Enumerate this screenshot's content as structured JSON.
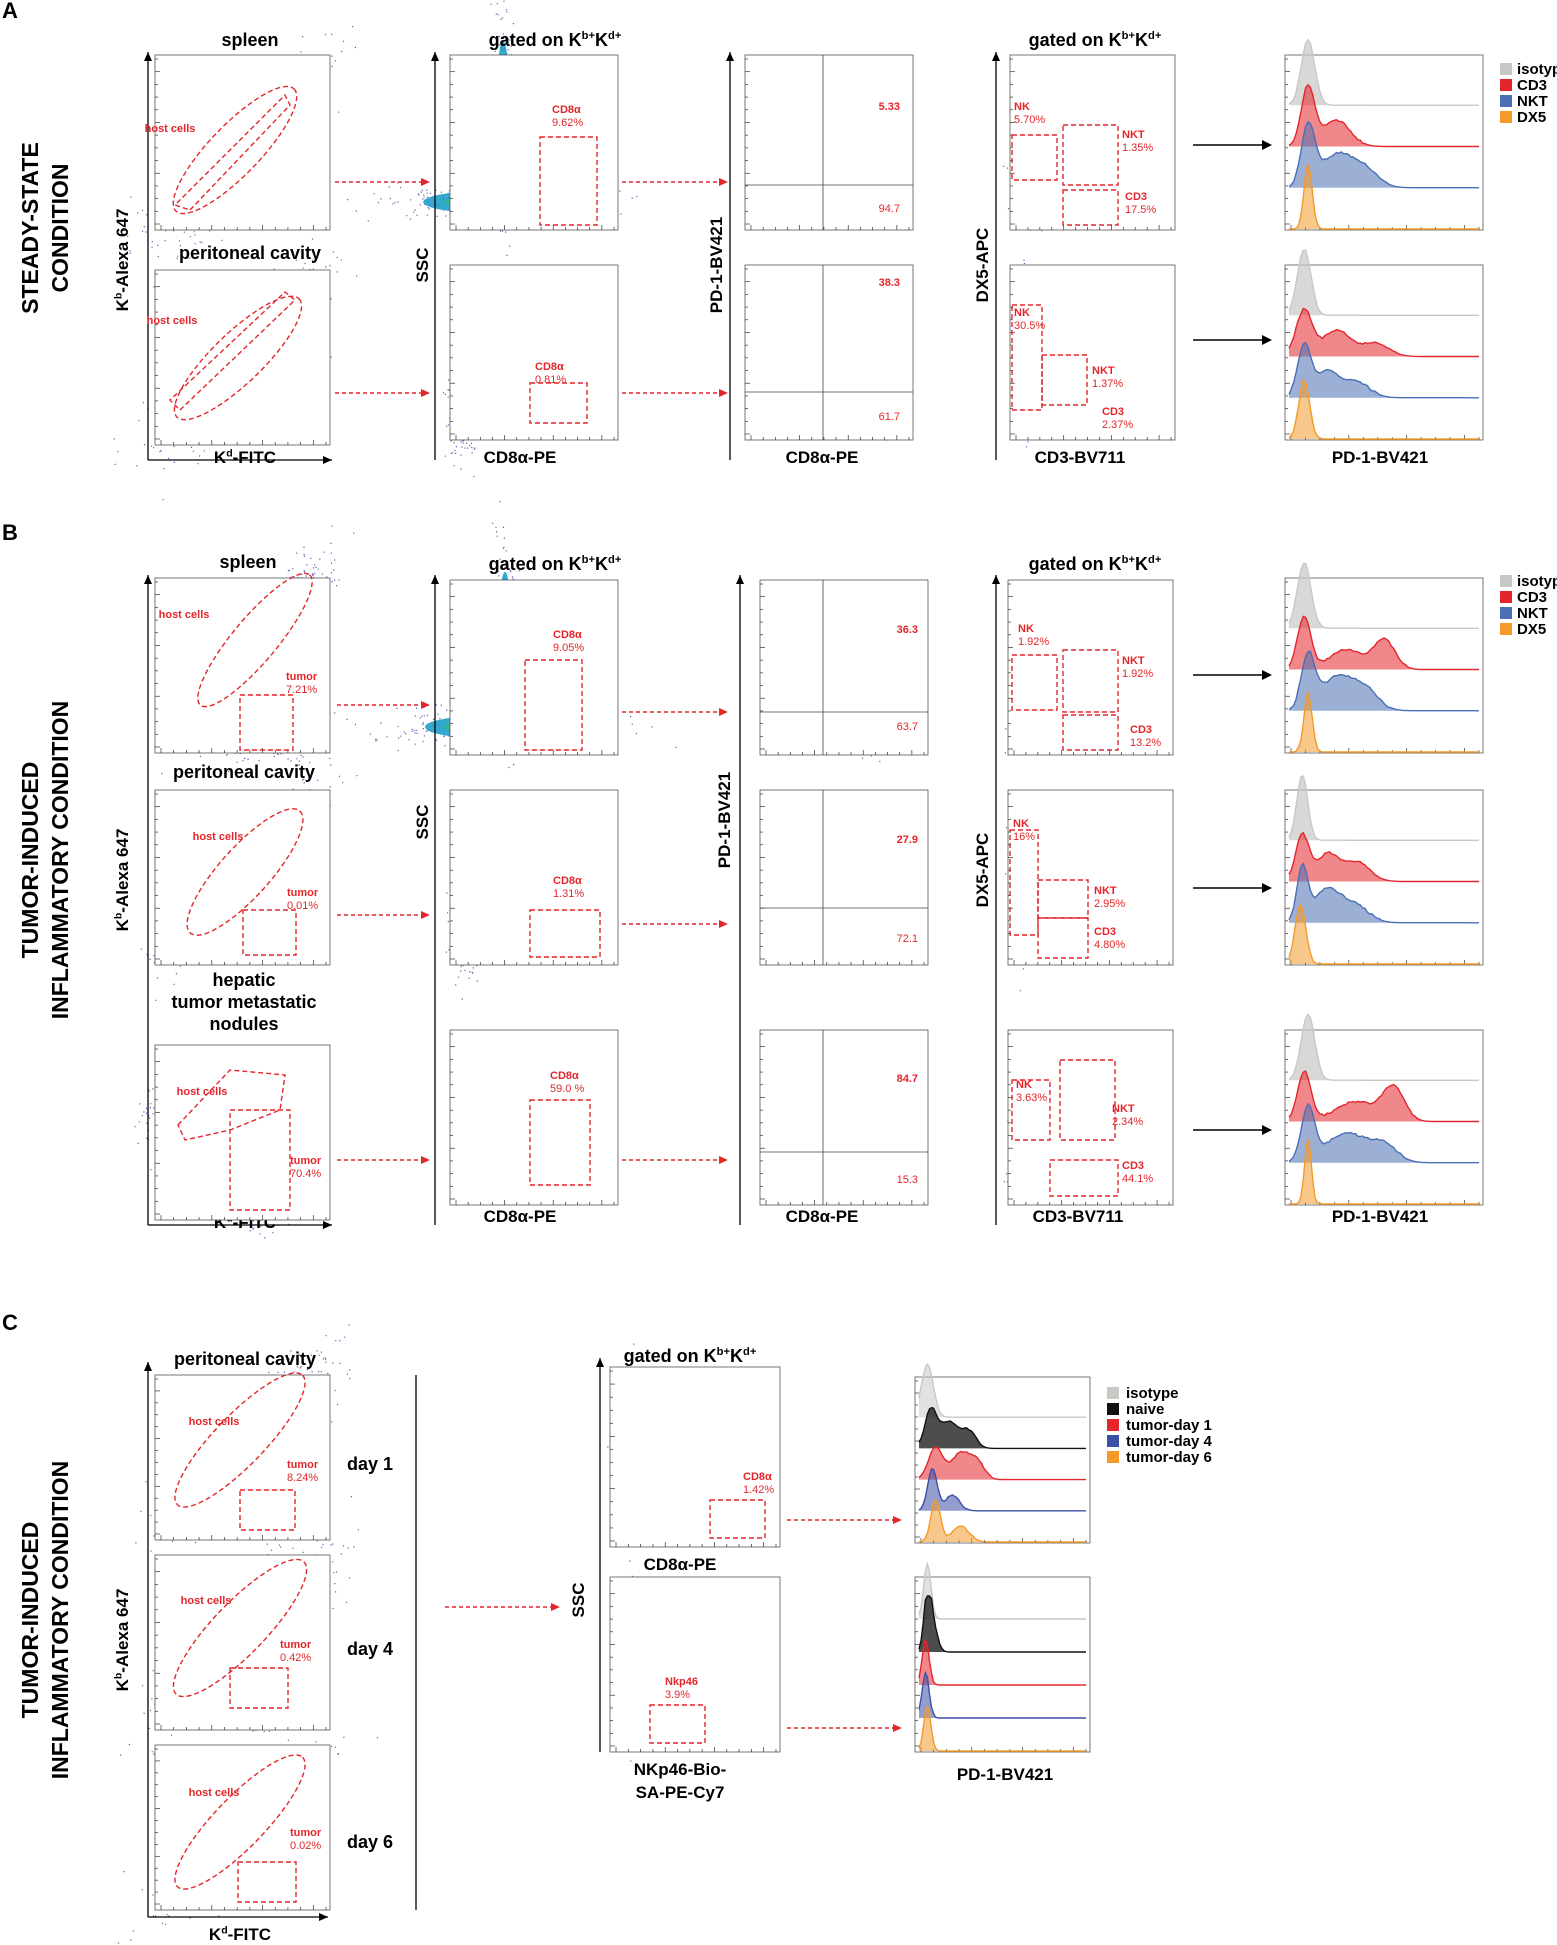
{
  "panels": {
    "A": {
      "letter": "A",
      "row_title": [
        "STEADY-STATE",
        "CONDITION"
      ],
      "tissues": [
        "spleen",
        "peritoneal cavity"
      ],
      "gated": {
        "main": "gated on K",
        "sup1": "b+",
        "mid": "K",
        "sup2": "d+"
      },
      "kb_axis": {
        "main": "K",
        "sup": "b",
        "rest": "-Alexa 647"
      },
      "kd_axis": {
        "main": "K",
        "sup": "d",
        "rest": "-FITC"
      },
      "ssc": "SSC",
      "cd8_axis": "CD8α-PE",
      "pd1_axis": "PD-1-BV421",
      "dx5_axis": "DX5-APC",
      "cd3_axis": "CD3-BV711",
      "host_label": "host cells",
      "cd8_gates": [
        [
          "CD8α",
          "9.62%"
        ],
        [
          "CD8α",
          "0.81%"
        ]
      ],
      "quad": [
        [
          "5.33",
          "94.7"
        ],
        [
          "38.3",
          "61.7"
        ]
      ],
      "nk": [
        [
          "NK",
          "5.70%"
        ],
        [
          "NK",
          "30.5%"
        ]
      ],
      "nkt": [
        [
          "NKT",
          "1.35%"
        ],
        [
          "NKT",
          "1.37%"
        ]
      ],
      "cd3g": [
        [
          "CD3",
          "17.5%"
        ],
        [
          "CD3",
          "2.37%"
        ]
      ],
      "legend": [
        "isotype",
        "CD3",
        "NKT",
        "DX5"
      ]
    },
    "B": {
      "letter": "B",
      "row_title": [
        "TUMOR-INDUCED",
        "INFLAMMATORY CONDITION"
      ],
      "tissues": [
        "spleen",
        "peritoneal cavity",
        "hepatic",
        "tumor metastatic",
        "nodules"
      ],
      "tumor_gates": [
        [
          "tumor",
          "7.21%"
        ],
        [
          "tumor",
          "0.01%"
        ],
        [
          "tumor",
          "70.4%"
        ]
      ],
      "cd8_gates": [
        [
          "CD8α",
          "9.05%"
        ],
        [
          "CD8α",
          "1.31%"
        ],
        [
          "CD8α",
          "59.0 %"
        ]
      ],
      "quad": [
        [
          "36.3",
          "63.7"
        ],
        [
          "27.9",
          "72.1"
        ],
        [
          "84.7",
          "15.3"
        ]
      ],
      "nk": [
        [
          "NK",
          "1.92%"
        ],
        [
          "NK",
          "16%"
        ],
        [
          "NK",
          "3.63%"
        ]
      ],
      "nkt": [
        [
          "NKT",
          "1.92%"
        ],
        [
          "NKT",
          "2.95%"
        ],
        [
          "NKT",
          "2.34%"
        ]
      ],
      "cd3g": [
        [
          "CD3",
          "13.2%"
        ],
        [
          "CD3",
          "4.80%"
        ],
        [
          "CD3",
          "44.1%"
        ]
      ],
      "legend": [
        "isotype",
        "CD3",
        "NKT",
        "DX5"
      ]
    },
    "C": {
      "letter": "C",
      "row_title": [
        "TUMOR-INDUCED",
        "INFLAMMATORY CONDITION"
      ],
      "tissue": "peritoneal cavity",
      "days": [
        "day 1",
        "day 4",
        "day 6"
      ],
      "tumor_gates": [
        [
          "tumor",
          "8.24%"
        ],
        [
          "tumor",
          "0.42%"
        ],
        [
          "tumor",
          "0.02%"
        ]
      ],
      "cd8_gate": [
        "CD8α",
        "1.42%"
      ],
      "nkp46_gate": [
        "Nkp46",
        "3.9%"
      ],
      "nkp46_axis": [
        "NKp46-Bio-",
        "SA-PE-Cy7"
      ],
      "legend": [
        "isotype",
        "naive",
        "tumor-day 1",
        "tumor-day 4",
        "tumor-day 6"
      ]
    }
  },
  "colors": {
    "isotype": "#c8c8c4",
    "CD3": "#e3262b",
    "NKT": "#4a6fb5",
    "DX5": "#f39a2b",
    "naive": "#111111",
    "tumor-day 1": "#e3262b",
    "tumor-day 4": "#3a4fa8",
    "tumor-day 6": "#f39a2b",
    "gate": "#e3262b"
  }
}
